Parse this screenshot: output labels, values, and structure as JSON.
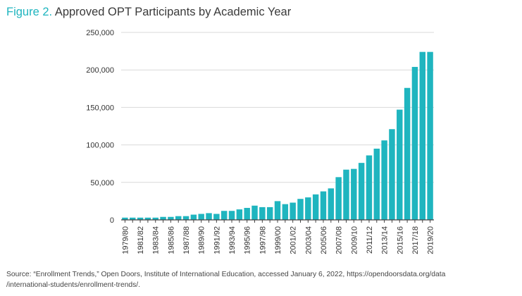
{
  "figure": {
    "prefix": "Figure 2.",
    "title": "Approved OPT Participants by Academic Year"
  },
  "source": {
    "line1": "Source: “Enrollment Trends,” Open Doors, Institute of International Education, accessed January 6, 2022, https://opendoorsdata.org/data",
    "line2": "/international-students/enrollment-trends/."
  },
  "colors": {
    "bar": "#1fb5bf",
    "grid": "#d9d9d9",
    "axis": "#444444",
    "accent": "#1fb5bf"
  },
  "chart_data": {
    "type": "bar",
    "title": "Approved OPT Participants by Academic Year",
    "xlabel": "",
    "ylabel": "",
    "ylim": [
      0,
      250000
    ],
    "yticks": [
      0,
      50000,
      100000,
      150000,
      200000,
      250000
    ],
    "ytick_labels": [
      "0",
      "50,000",
      "100,000",
      "150,000",
      "200,000",
      "250,000"
    ],
    "grid": true,
    "categories": [
      "1979/80",
      "1980/81",
      "1981/82",
      "1982/83",
      "1983/84",
      "1984/85",
      "1985/86",
      "1986/87",
      "1987/88",
      "1988/89",
      "1989/90",
      "1990/91",
      "1991/92",
      "1992/93",
      "1993/94",
      "1994/95",
      "1995/96",
      "1996/97",
      "1997/98",
      "1998/99",
      "1999/00",
      "2000/01",
      "2001/02",
      "2002/03",
      "2003/04",
      "2004/05",
      "2005/06",
      "2006/07",
      "2007/08",
      "2008/09",
      "2009/10",
      "2010/11",
      "2011/12",
      "2012/13",
      "2013/14",
      "2014/15",
      "2015/16",
      "2016/17",
      "2017/18",
      "2018/19",
      "2019/20"
    ],
    "visible_tick_labels": [
      "1979/80",
      "1981/82",
      "1983/84",
      "1985/86",
      "1987/88",
      "1989/90",
      "1991/92",
      "1993/94",
      "1995/96",
      "1997/98",
      "1999/00",
      "2001/02",
      "2003/04",
      "2005/06",
      "2007/08",
      "2009/10",
      "2011/12",
      "2013/14",
      "2015/16",
      "2017/18",
      "2019/20"
    ],
    "values": [
      3000,
      3000,
      3000,
      3000,
      3000,
      4000,
      4000,
      5000,
      5000,
      7000,
      8000,
      9000,
      8000,
      12000,
      12000,
      14000,
      16000,
      19000,
      17000,
      17000,
      25000,
      21000,
      23000,
      28000,
      30000,
      34000,
      38000,
      42000,
      57000,
      67000,
      68000,
      76000,
      86000,
      95000,
      106000,
      121000,
      147000,
      176000,
      204000,
      224000,
      224000
    ]
  }
}
